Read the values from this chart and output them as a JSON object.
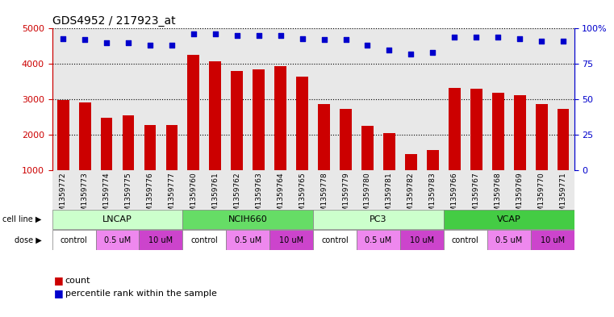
{
  "title": "GDS4952 / 217923_at",
  "samples": [
    "GSM1359772",
    "GSM1359773",
    "GSM1359774",
    "GSM1359775",
    "GSM1359776",
    "GSM1359777",
    "GSM1359760",
    "GSM1359761",
    "GSM1359762",
    "GSM1359763",
    "GSM1359764",
    "GSM1359765",
    "GSM1359778",
    "GSM1359779",
    "GSM1359780",
    "GSM1359781",
    "GSM1359782",
    "GSM1359783",
    "GSM1359766",
    "GSM1359767",
    "GSM1359768",
    "GSM1359769",
    "GSM1359770",
    "GSM1359771"
  ],
  "counts": [
    2980,
    2920,
    2480,
    2560,
    2270,
    2270,
    4260,
    4070,
    3810,
    3840,
    3950,
    3640,
    2880,
    2730,
    2250,
    2060,
    1460,
    1580,
    3320,
    3300,
    3200,
    3130,
    2870,
    2730
  ],
  "percentile_ranks": [
    93,
    92,
    90,
    90,
    88,
    88,
    96,
    96,
    95,
    95,
    95,
    93,
    92,
    92,
    88,
    85,
    82,
    83,
    94,
    94,
    94,
    93,
    91,
    91
  ],
  "bar_color": "#cc0000",
  "dot_color": "#0000cc",
  "cell_lines": [
    {
      "name": "LNCAP",
      "start": 0,
      "end": 6,
      "color": "#ccffcc"
    },
    {
      "name": "NCIH660",
      "start": 6,
      "end": 12,
      "color": "#66dd66"
    },
    {
      "name": "PC3",
      "start": 12,
      "end": 18,
      "color": "#ccffcc"
    },
    {
      "name": "VCAP",
      "start": 18,
      "end": 24,
      "color": "#44cc44"
    }
  ],
  "dose_groups": [
    {
      "name": "control",
      "start": 0,
      "end": 2,
      "color": "#ffffff"
    },
    {
      "name": "0.5 uM",
      "start": 2,
      "end": 4,
      "color": "#ee88ee"
    },
    {
      "name": "10 uM",
      "start": 4,
      "end": 6,
      "color": "#cc44cc"
    },
    {
      "name": "control",
      "start": 6,
      "end": 8,
      "color": "#ffffff"
    },
    {
      "name": "0.5 uM",
      "start": 8,
      "end": 10,
      "color": "#ee88ee"
    },
    {
      "name": "10 uM",
      "start": 10,
      "end": 12,
      "color": "#cc44cc"
    },
    {
      "name": "control",
      "start": 12,
      "end": 14,
      "color": "#ffffff"
    },
    {
      "name": "0.5 uM",
      "start": 14,
      "end": 16,
      "color": "#ee88ee"
    },
    {
      "name": "10 uM",
      "start": 16,
      "end": 18,
      "color": "#cc44cc"
    },
    {
      "name": "control",
      "start": 18,
      "end": 20,
      "color": "#ffffff"
    },
    {
      "name": "0.5 uM",
      "start": 20,
      "end": 22,
      "color": "#ee88ee"
    },
    {
      "name": "10 uM",
      "start": 22,
      "end": 24,
      "color": "#cc44cc"
    }
  ],
  "ymin": 1000,
  "ymax": 5000,
  "yticks_left": [
    1000,
    2000,
    3000,
    4000,
    5000
  ],
  "pct_min": 0,
  "pct_max": 100,
  "yticks_right": [
    0,
    25,
    50,
    75,
    100
  ],
  "ytick_labels_right": [
    "0",
    "25",
    "50",
    "75",
    "100%"
  ],
  "background_color": "#ffffff",
  "plot_bg_color": "#e8e8e8",
  "left_axis_color": "#cc0000",
  "right_axis_color": "#0000cc"
}
